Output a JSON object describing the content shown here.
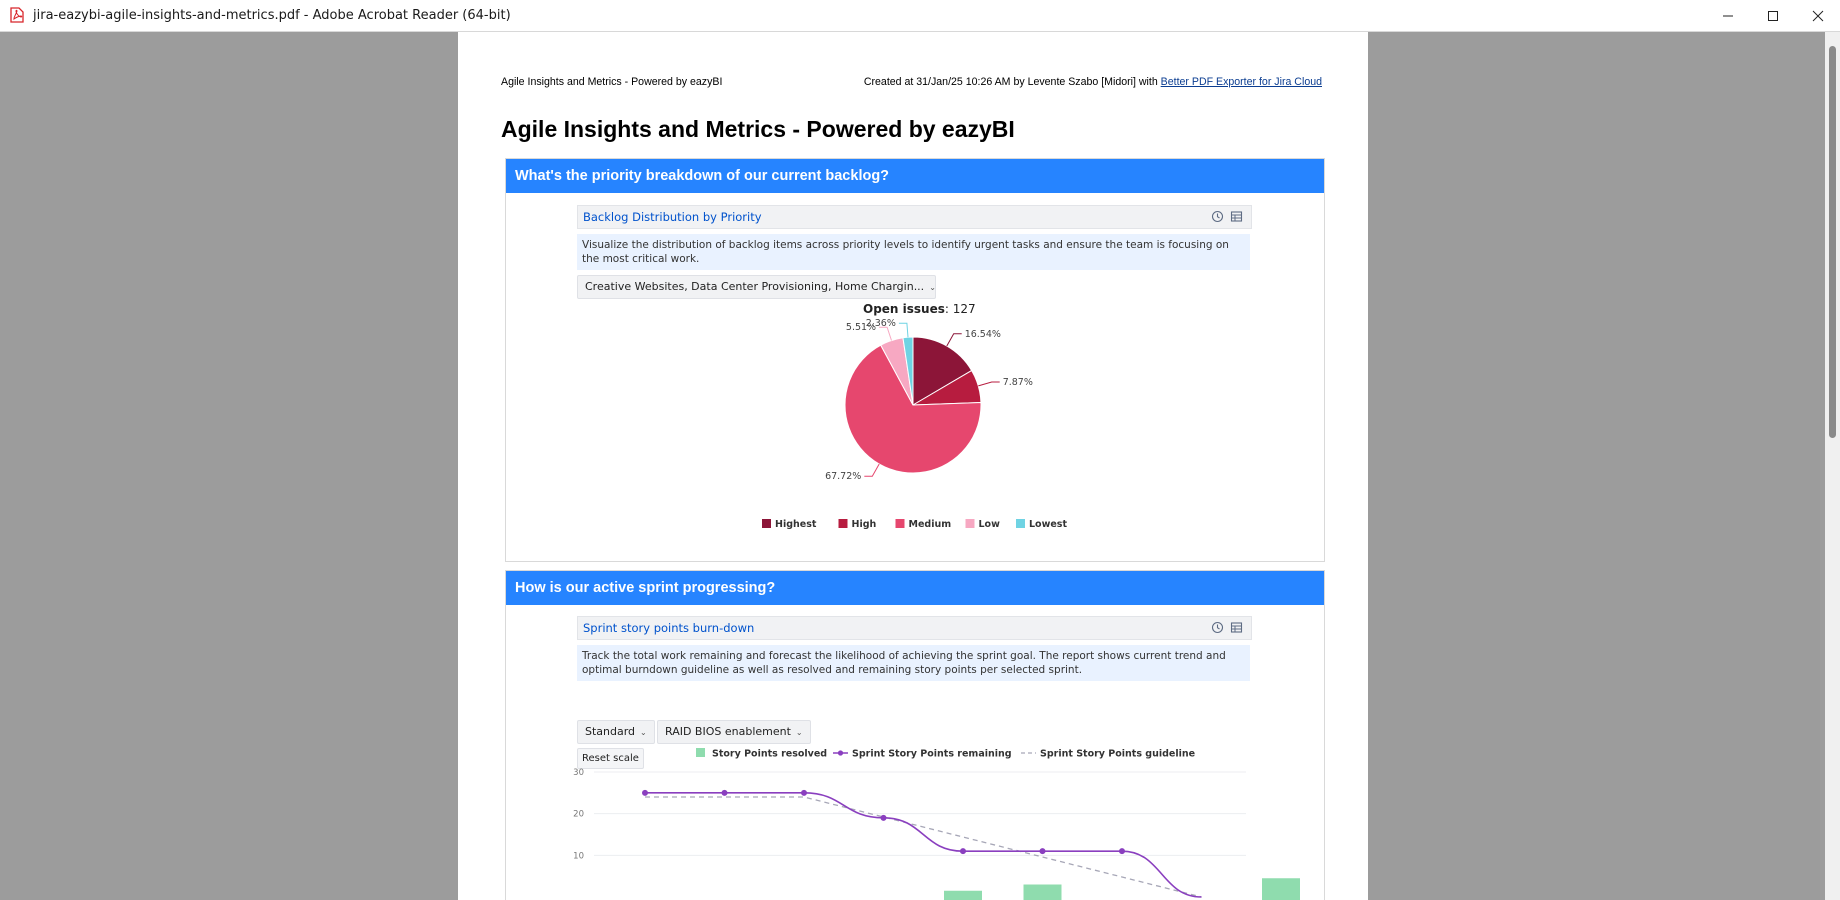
{
  "window": {
    "title": "jira-eazybi-agile-insights-and-metrics.pdf - Adobe Acrobat Reader (64-bit)",
    "minimize": "—",
    "maximize": "☐",
    "close": "✕"
  },
  "page_header": {
    "left": "Agile Insights and Metrics - Powered by eazyBI",
    "right_text": "Created at 31/Jan/25 10:26 AM by Levente Szabo [Midori] with ",
    "right_link": "Better PDF Exporter for Jira Cloud"
  },
  "doc_title": "Agile Insights and Metrics - Powered by eazyBI",
  "section1": {
    "heading": "What's the priority breakdown of our current backlog?",
    "gadget_title": "Backlog Distribution by Priority",
    "description": "Visualize the distribution of backlog items across priority levels to identify urgent tasks and ensure the team is focusing on the most critical work.",
    "filter": "Creative Websites, Data Center Provisioning, Home Chargin...",
    "open_issues_label": "Open issues",
    "open_issues_value": ": 127"
  },
  "section2": {
    "heading": "How is our active sprint progressing?",
    "gadget_title": "Sprint story points burn-down",
    "description": "Track the total work remaining and forecast the likelihood of achieving the sprint goal. The report shows current trend and optimal burndown guideline as well as resolved and remaining story points per selected sprint.",
    "filter1": "Standard",
    "filter2": "RAID BIOS enablement",
    "reset": "Reset scale"
  },
  "chart_data": [
    {
      "type": "pie",
      "title": "",
      "slices": [
        {
          "name": "Highest",
          "value": 16.54,
          "label": "16.54%",
          "color": "#8c1538"
        },
        {
          "name": "High",
          "value": 7.87,
          "label": "7.87%",
          "color": "#b71c3f"
        },
        {
          "name": "Medium",
          "value": 67.72,
          "label": "67.72%",
          "color": "#e6476e"
        },
        {
          "name": "Low",
          "value": 5.51,
          "label": "5.51%",
          "color": "#f7a8c2"
        },
        {
          "name": "Lowest",
          "value": 2.36,
          "label": "2.36%",
          "color": "#6fd3e3"
        }
      ],
      "legend": "bottom"
    },
    {
      "type": "line",
      "series": [
        {
          "name": "Story Points resolved",
          "kind": "bar",
          "color": "#8fdcae",
          "points": [
            [
              4,
              1.5
            ],
            [
              5,
              3
            ],
            [
              8,
              4.5
            ]
          ]
        },
        {
          "name": "Sprint Story Points remaining",
          "kind": "line",
          "color": "#8a3fbf",
          "points": [
            [
              0,
              25
            ],
            [
              1,
              25
            ],
            [
              2,
              25
            ],
            [
              3,
              19
            ],
            [
              4,
              11
            ],
            [
              5,
              11
            ],
            [
              6,
              11
            ],
            [
              7,
              0
            ]
          ]
        },
        {
          "name": "Sprint Story Points guideline",
          "kind": "dashed",
          "color": "#a7a7b7",
          "points": [
            [
              0,
              24
            ],
            [
              2,
              24
            ],
            [
              7,
              0
            ]
          ]
        }
      ],
      "ylim": [
        0,
        30
      ],
      "yticks": [
        "30",
        "20",
        "10"
      ],
      "grid": true,
      "legend": "top"
    }
  ]
}
